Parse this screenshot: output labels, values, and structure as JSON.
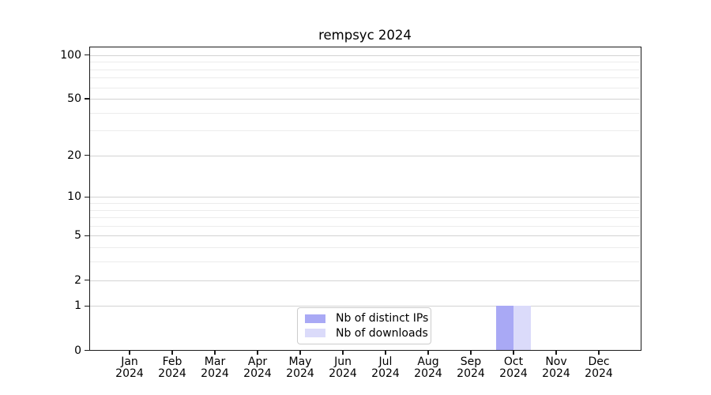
{
  "title": "rempsyc 2024",
  "colors": {
    "distinct_ips": "#a9a9f5",
    "downloads": "#dbdbfa",
    "grid_major": "#d3d3d3",
    "grid_minor": "#ececec",
    "axis": "#1a1a1a",
    "legend_border": "#cccccc",
    "background": "#ffffff"
  },
  "legend": {
    "items": [
      {
        "label": "Nb of distinct IPs",
        "color": "#a9a9f5"
      },
      {
        "label": "Nb of downloads",
        "color": "#dbdbfa"
      }
    ]
  },
  "chart_data": {
    "type": "bar",
    "title": "rempsyc 2024",
    "categories": [
      "Jan 2024",
      "Feb 2024",
      "Mar 2024",
      "Apr 2024",
      "May 2024",
      "Jun 2024",
      "Jul 2024",
      "Aug 2024",
      "Sep 2024",
      "Oct 2024",
      "Nov 2024",
      "Dec 2024"
    ],
    "series": [
      {
        "name": "Nb of distinct IPs",
        "color": "#a9a9f5",
        "values": [
          0,
          0,
          0,
          0,
          0,
          0,
          0,
          0,
          0,
          1,
          0,
          0
        ]
      },
      {
        "name": "Nb of downloads",
        "color": "#dbdbfa",
        "values": [
          0,
          0,
          0,
          0,
          0,
          0,
          0,
          0,
          0,
          1,
          0,
          0
        ]
      }
    ],
    "xlabel": "",
    "ylabel": "",
    "yscale": "log1p",
    "yticks": [
      0,
      1,
      2,
      5,
      10,
      20,
      50,
      100
    ],
    "yticks_minor": [
      3,
      4,
      6,
      7,
      8,
      9,
      30,
      40,
      60,
      70,
      80,
      90
    ],
    "ylim": [
      0,
      115
    ],
    "grid": "horizontal-major-and-minor",
    "legend_position": "lower center"
  }
}
